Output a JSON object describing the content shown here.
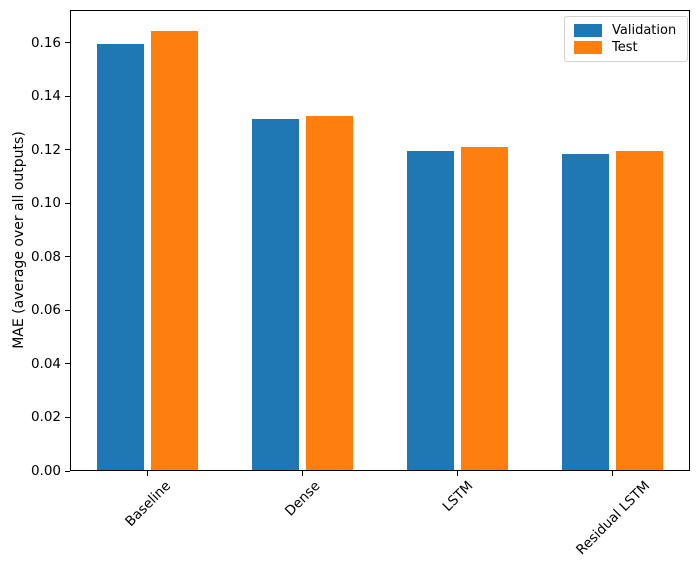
{
  "chart_data": {
    "type": "bar",
    "title": "",
    "categories": [
      "Baseline",
      "Dense",
      "LSTM",
      "Residual LSTM"
    ],
    "series": [
      {
        "name": "Validation",
        "color": "#1f77b4",
        "values": [
          0.1594,
          0.1313,
          0.1195,
          0.1184
        ]
      },
      {
        "name": "Test",
        "color": "#ff7f0e",
        "values": [
          0.1643,
          0.1325,
          0.1212,
          0.1197
        ]
      }
    ],
    "xlabel": "",
    "ylabel": "MAE (average over all outputs)",
    "ylim": [
      0,
      0.1722
    ],
    "yticks": [
      0.0,
      0.02,
      0.04,
      0.06,
      0.08,
      0.1,
      0.12,
      0.14,
      0.16
    ],
    "ytick_labels": [
      "0.00",
      "0.02",
      "0.04",
      "0.06",
      "0.08",
      "0.10",
      "0.12",
      "0.14",
      "0.16"
    ],
    "x_tick_rotation_degrees": 45,
    "grid": false,
    "legend_position": "upper right",
    "bar_width_fraction": 0.3,
    "bar_offset_fraction": 0.175,
    "axis_color": "#000000",
    "background_color": "#ffffff"
  }
}
